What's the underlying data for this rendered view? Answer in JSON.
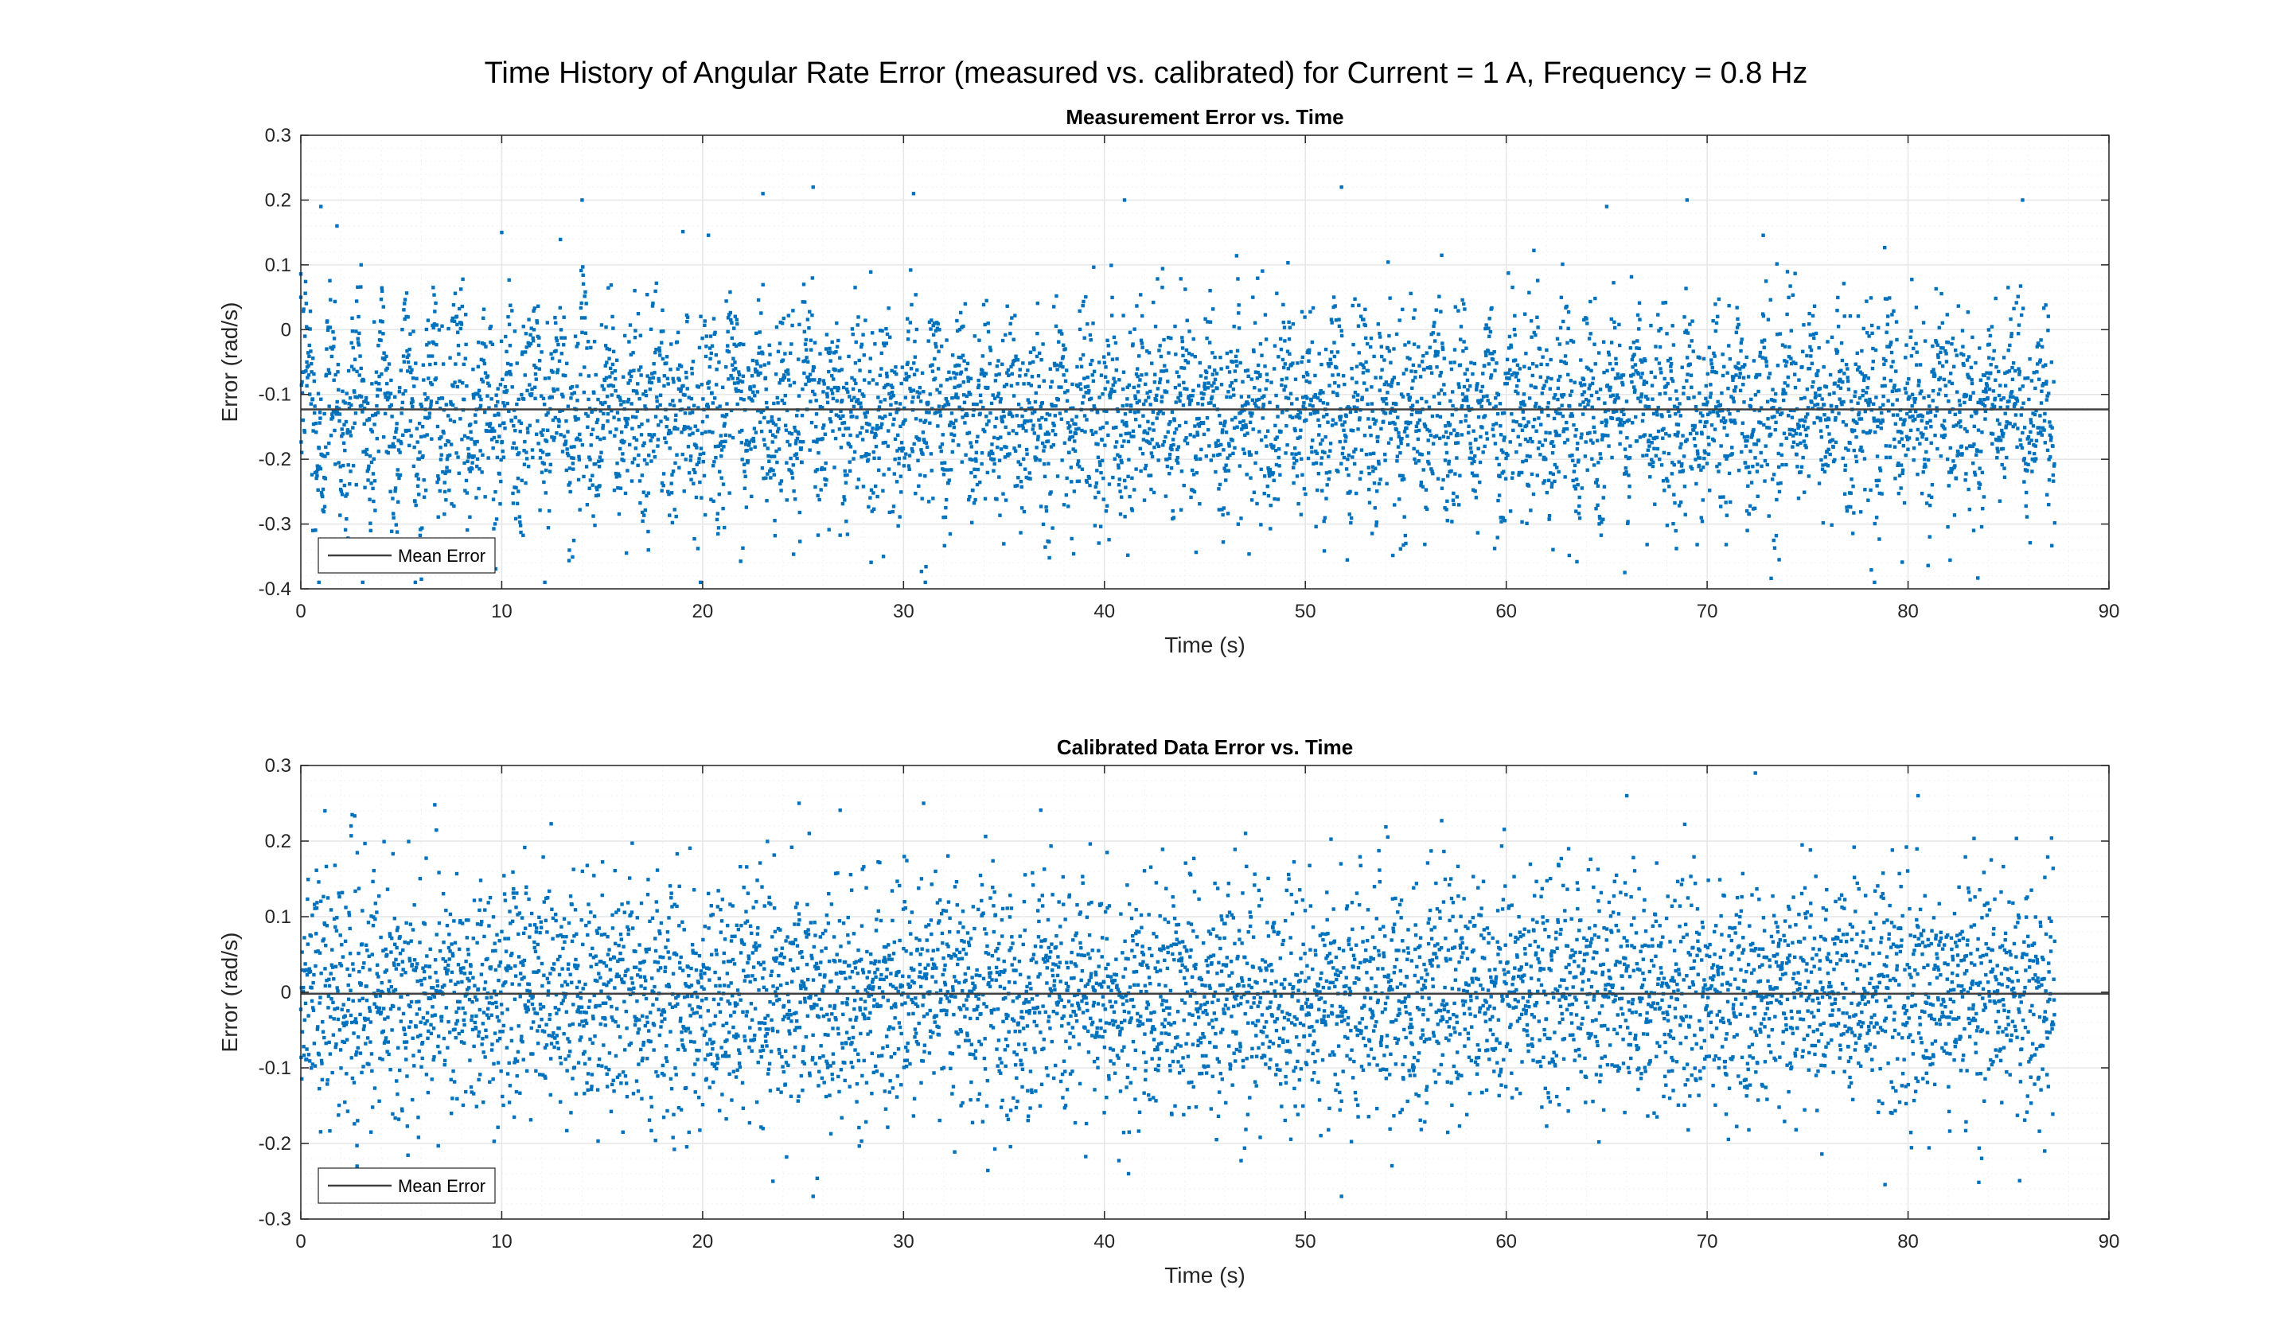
{
  "figure": {
    "title": "Time History of Angular Rate Error (measured vs. calibrated) for Current = 1 A, Frequency = 0.8 Hz"
  },
  "colors": {
    "marker": "#0072BD",
    "mean_line": "#404040",
    "axes": "#262626",
    "grid": "#e6e6e6",
    "grid_minor": "#f2f2f2"
  },
  "chart_data": [
    {
      "type": "scatter",
      "title": "Measurement Error vs. Time",
      "xlabel": "Time (s)",
      "ylabel": "Error (rad/s)",
      "xlim": [
        0,
        90
      ],
      "ylim": [
        -0.4,
        0.3
      ],
      "xticks": [
        0,
        10,
        20,
        30,
        40,
        50,
        60,
        70,
        80,
        90
      ],
      "yticks": [
        -0.4,
        -0.3,
        -0.2,
        -0.1,
        0,
        0.1,
        0.2,
        0.3
      ],
      "grid": true,
      "minor_grid": true,
      "legend": {
        "location": "bottom-left",
        "entries": [
          "Mean Error"
        ]
      },
      "series": [
        {
          "name": "",
          "kind": "points",
          "marker": "square",
          "approx_count": 5500,
          "x_range": [
            0,
            87.3
          ],
          "y_mean": -0.125,
          "y_spread_2sigma": 0.19,
          "y_min": -0.39,
          "y_max": 0.22,
          "oscillation_period_s": 1.25,
          "sample_points": [
            [
              0.0,
              0.05
            ],
            [
              0.3,
              -0.05
            ],
            [
              0.6,
              -0.31
            ],
            [
              0.9,
              -0.39
            ],
            [
              1.0,
              0.19
            ],
            [
              1.8,
              0.16
            ],
            [
              3.0,
              0.1
            ],
            [
              4.5,
              -0.36
            ],
            [
              8.0,
              -0.37
            ],
            [
              10.0,
              0.15
            ],
            [
              14.0,
              0.2
            ],
            [
              17.3,
              -0.34
            ],
            [
              23.0,
              0.21
            ],
            [
              25.5,
              0.22
            ],
            [
              29.0,
              -0.35
            ],
            [
              30.5,
              0.21
            ],
            [
              41.0,
              0.2
            ],
            [
              51.8,
              0.22
            ],
            [
              55.0,
              -0.33
            ],
            [
              65.0,
              0.19
            ],
            [
              69.0,
              0.2
            ],
            [
              72.0,
              -0.31
            ],
            [
              85.7,
              0.2
            ],
            [
              87.0,
              -0.27
            ]
          ]
        },
        {
          "name": "Mean Error",
          "kind": "line",
          "y": -0.123
        }
      ]
    },
    {
      "type": "scatter",
      "title": "Calibrated Data Error vs. Time",
      "xlabel": "Time (s)",
      "ylabel": "Error (rad/s)",
      "xlim": [
        0,
        90
      ],
      "ylim": [
        -0.3,
        0.3
      ],
      "xticks": [
        0,
        10,
        20,
        30,
        40,
        50,
        60,
        70,
        80,
        90
      ],
      "yticks": [
        -0.3,
        -0.2,
        -0.1,
        0,
        0.1,
        0.2,
        0.3
      ],
      "grid": true,
      "minor_grid": true,
      "legend": {
        "location": "bottom-left",
        "entries": [
          "Mean Error"
        ]
      },
      "series": [
        {
          "name": "",
          "kind": "points",
          "marker": "square",
          "approx_count": 5500,
          "x_range": [
            0,
            87.3
          ],
          "y_mean": -0.003,
          "y_spread_2sigma": 0.23,
          "y_min": -0.27,
          "y_max": 0.29,
          "sample_points": [
            [
              1.2,
              0.24
            ],
            [
              2.5,
              0.22
            ],
            [
              2.8,
              -0.23
            ],
            [
              23.5,
              -0.25
            ],
            [
              24.8,
              0.25
            ],
            [
              25.5,
              -0.27
            ],
            [
              31.0,
              0.25
            ],
            [
              41.2,
              -0.24
            ],
            [
              51.8,
              -0.27
            ],
            [
              66.0,
              0.26
            ],
            [
              72.4,
              0.29
            ],
            [
              80.5,
              0.26
            ],
            [
              86.8,
              -0.21
            ]
          ]
        },
        {
          "name": "Mean Error",
          "kind": "line",
          "y": -0.002
        }
      ]
    }
  ]
}
